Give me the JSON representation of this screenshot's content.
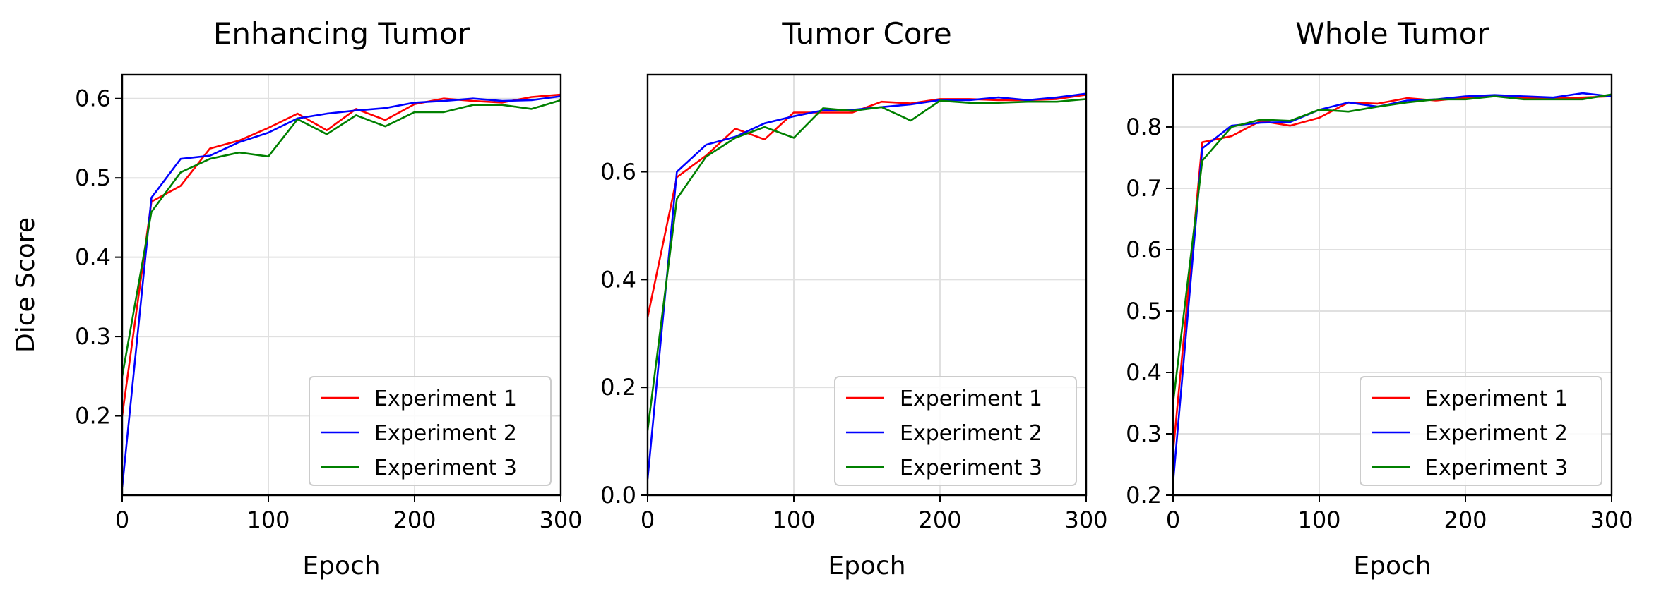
{
  "figure": {
    "ylabel": "Dice Score",
    "legend_loc": "lower-right",
    "grid": true
  },
  "chart_data": [
    {
      "type": "line",
      "title": "Enhancing Tumor",
      "xlabel": "Epoch",
      "ylabel": "Dice Score",
      "xlim": [
        0,
        300
      ],
      "ylim": [
        0.1,
        0.63
      ],
      "xticks": [
        0,
        100,
        200,
        300
      ],
      "yticks": [
        0.2,
        0.3,
        0.4,
        0.5,
        0.6
      ],
      "x": [
        0,
        20,
        40,
        60,
        80,
        100,
        120,
        140,
        160,
        180,
        200,
        220,
        240,
        260,
        280,
        300
      ],
      "series": [
        {
          "name": "Experiment 1",
          "color": "#ff0000",
          "values": [
            0.2,
            0.47,
            0.49,
            0.537,
            0.547,
            0.563,
            0.581,
            0.56,
            0.587,
            0.573,
            0.593,
            0.6,
            0.597,
            0.595,
            0.602,
            0.605
          ]
        },
        {
          "name": "Experiment 2",
          "color": "#0000ff",
          "values": [
            0.11,
            0.475,
            0.524,
            0.528,
            0.545,
            0.557,
            0.575,
            0.581,
            0.585,
            0.588,
            0.595,
            0.597,
            0.6,
            0.597,
            0.598,
            0.603
          ]
        },
        {
          "name": "Experiment 3",
          "color": "#008000",
          "values": [
            0.25,
            0.457,
            0.507,
            0.524,
            0.532,
            0.527,
            0.574,
            0.555,
            0.579,
            0.565,
            0.583,
            0.583,
            0.592,
            0.592,
            0.587,
            0.598
          ]
        }
      ]
    },
    {
      "type": "line",
      "title": "Tumor Core",
      "xlabel": "Epoch",
      "ylabel": "",
      "xlim": [
        0,
        300
      ],
      "ylim": [
        0.0,
        0.78
      ],
      "xticks": [
        0,
        100,
        200,
        300
      ],
      "yticks": [
        0.0,
        0.2,
        0.4,
        0.6
      ],
      "x": [
        0,
        20,
        40,
        60,
        80,
        100,
        120,
        140,
        160,
        180,
        200,
        220,
        240,
        260,
        280,
        300
      ],
      "series": [
        {
          "name": "Experiment 1",
          "color": "#ff0000",
          "values": [
            0.33,
            0.59,
            0.63,
            0.68,
            0.66,
            0.71,
            0.71,
            0.71,
            0.73,
            0.727,
            0.735,
            0.735,
            0.733,
            0.733,
            0.735,
            0.743
          ]
        },
        {
          "name": "Experiment 2",
          "color": "#0000ff",
          "values": [
            0.03,
            0.6,
            0.65,
            0.665,
            0.69,
            0.703,
            0.714,
            0.715,
            0.72,
            0.725,
            0.733,
            0.733,
            0.738,
            0.733,
            0.738,
            0.745
          ]
        },
        {
          "name": "Experiment 3",
          "color": "#008000",
          "values": [
            0.12,
            0.55,
            0.628,
            0.663,
            0.683,
            0.663,
            0.718,
            0.713,
            0.72,
            0.695,
            0.732,
            0.728,
            0.728,
            0.73,
            0.73,
            0.735
          ]
        }
      ]
    },
    {
      "type": "line",
      "title": "Whole Tumor",
      "xlabel": "Epoch",
      "ylabel": "",
      "xlim": [
        0,
        300
      ],
      "ylim": [
        0.2,
        0.885
      ],
      "xticks": [
        0,
        100,
        200,
        300
      ],
      "yticks": [
        0.2,
        0.3,
        0.4,
        0.5,
        0.6,
        0.7,
        0.8
      ],
      "x": [
        0,
        20,
        40,
        60,
        80,
        100,
        120,
        140,
        160,
        180,
        200,
        220,
        240,
        260,
        280,
        300
      ],
      "series": [
        {
          "name": "Experiment 1",
          "color": "#ff0000",
          "values": [
            0.27,
            0.775,
            0.785,
            0.81,
            0.802,
            0.815,
            0.84,
            0.838,
            0.847,
            0.843,
            0.848,
            0.85,
            0.848,
            0.847,
            0.848,
            0.85
          ]
        },
        {
          "name": "Experiment 2",
          "color": "#0000ff",
          "values": [
            0.22,
            0.765,
            0.802,
            0.807,
            0.808,
            0.828,
            0.84,
            0.833,
            0.843,
            0.845,
            0.85,
            0.852,
            0.85,
            0.848,
            0.855,
            0.85
          ]
        },
        {
          "name": "Experiment 3",
          "color": "#008000",
          "values": [
            0.35,
            0.745,
            0.8,
            0.812,
            0.81,
            0.828,
            0.825,
            0.833,
            0.84,
            0.845,
            0.845,
            0.85,
            0.845,
            0.845,
            0.845,
            0.853
          ]
        }
      ]
    }
  ]
}
